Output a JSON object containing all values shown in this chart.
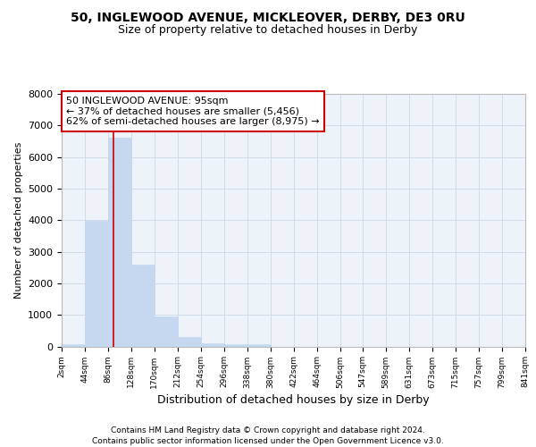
{
  "title1": "50, INGLEWOOD AVENUE, MICKLEOVER, DERBY, DE3 0RU",
  "title2": "Size of property relative to detached houses in Derby",
  "xlabel": "Distribution of detached houses by size in Derby",
  "ylabel": "Number of detached properties",
  "bin_edges": [
    2,
    44,
    86,
    128,
    170,
    212,
    254,
    296,
    338,
    380,
    422,
    464,
    506,
    547,
    589,
    631,
    673,
    715,
    757,
    799,
    841
  ],
  "bin_counts": [
    70,
    3980,
    6600,
    2600,
    950,
    310,
    110,
    70,
    70,
    0,
    0,
    0,
    0,
    0,
    0,
    0,
    0,
    0,
    0,
    0
  ],
  "bar_color": "#c5d8f0",
  "bar_edgecolor": "#c5d8f0",
  "vline_x": 95,
  "vline_color": "#cc0000",
  "annotation_line1": "50 INGLEWOOD AVENUE: 95sqm",
  "annotation_line2": "← 37% of detached houses are smaller (5,456)",
  "annotation_line3": "62% of semi-detached houses are larger (8,975) →",
  "annotation_bbox_edgecolor": "#cc0000",
  "annotation_bbox_facecolor": "white",
  "ylim": [
    0,
    8000
  ],
  "yticks": [
    0,
    1000,
    2000,
    3000,
    4000,
    5000,
    6000,
    7000,
    8000
  ],
  "grid_color": "#d0dce8",
  "background_color": "#ffffff",
  "axes_background": "#eef3f9",
  "footer1": "Contains HM Land Registry data © Crown copyright and database right 2024.",
  "footer2": "Contains public sector information licensed under the Open Government Licence v3.0.",
  "tick_labels": [
    "2sqm",
    "44sqm",
    "86sqm",
    "128sqm",
    "170sqm",
    "212sqm",
    "254sqm",
    "296sqm",
    "338sqm",
    "380sqm",
    "422sqm",
    "464sqm",
    "506sqm",
    "547sqm",
    "589sqm",
    "631sqm",
    "673sqm",
    "715sqm",
    "757sqm",
    "799sqm",
    "841sqm"
  ]
}
